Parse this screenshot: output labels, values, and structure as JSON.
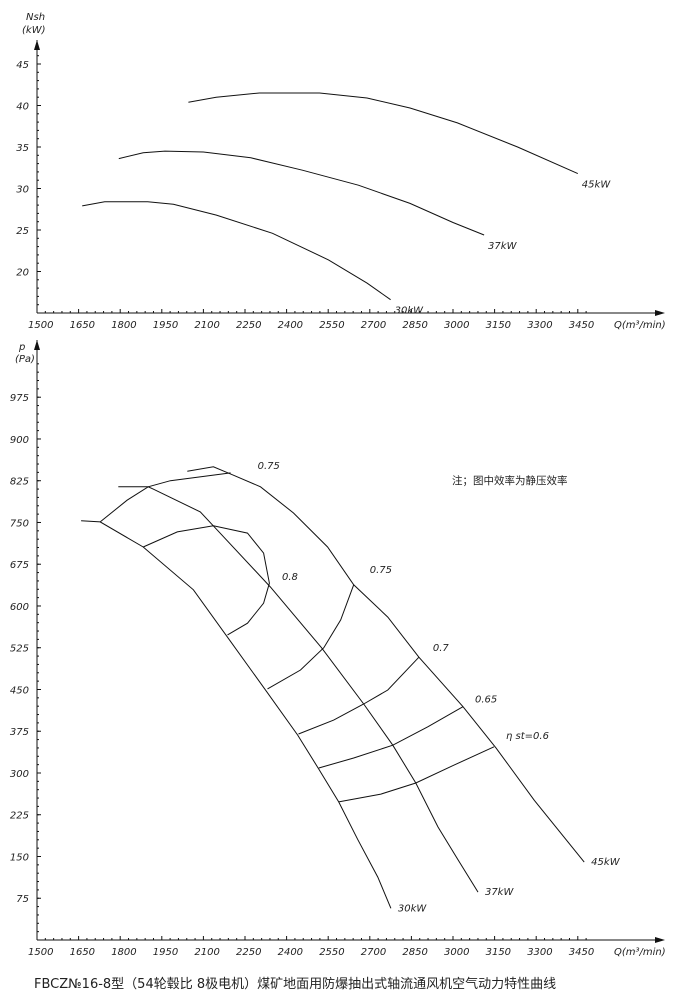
{
  "chart_data": [
    {
      "type": "line",
      "title": "",
      "ylabel_line1": "Nsh",
      "ylabel_line2": "(kW)",
      "xlabel": "Q(m³/min)",
      "xlim": [
        1500,
        3500
      ],
      "ylim": [
        15,
        47
      ],
      "xticks": [
        1500,
        1650,
        1800,
        1950,
        2100,
        2250,
        2400,
        2550,
        2700,
        2850,
        3000,
        3150,
        3300,
        3450
      ],
      "yticks": [
        20,
        25,
        30,
        35,
        40,
        45
      ],
      "grid": false,
      "series": [
        {
          "name": "45kW",
          "x": [
            2046,
            2146,
            2302,
            2519,
            2690,
            2845,
            3016,
            3233,
            3450
          ],
          "y": [
            40.4,
            41.0,
            41.5,
            41.5,
            40.9,
            39.7,
            37.9,
            35.0,
            31.8
          ]
        },
        {
          "name": "37kW",
          "x": [
            1795,
            1883,
            1961,
            2100,
            2271,
            2457,
            2659,
            2845,
            3000,
            3112
          ],
          "y": [
            33.6,
            34.3,
            34.5,
            34.4,
            33.7,
            32.2,
            30.4,
            28.2,
            25.9,
            24.4
          ]
        },
        {
          "name": "30kW",
          "x": [
            1663,
            1744,
            1899,
            1992,
            2147,
            2349,
            2551,
            2690,
            2775
          ],
          "y": [
            27.9,
            28.4,
            28.4,
            28.1,
            26.8,
            24.6,
            21.4,
            18.6,
            16.6
          ]
        }
      ]
    },
    {
      "type": "line",
      "title": "",
      "ylabel_line1": "p",
      "ylabel_line2": "(Pa)",
      "xlabel": "Q(m³/min)",
      "xlim": [
        1500,
        3500
      ],
      "ylim": [
        0,
        1050
      ],
      "xticks": [
        1500,
        1650,
        1800,
        1950,
        2100,
        2250,
        2400,
        2550,
        2700,
        2850,
        3000,
        3150,
        3300,
        3450
      ],
      "yticks": [
        75,
        150,
        225,
        300,
        375,
        450,
        525,
        600,
        675,
        750,
        825,
        900,
        975
      ],
      "grid": false,
      "note": "注；图中效率为静压效率",
      "series": [
        {
          "name": "30kW",
          "x": [
            1659,
            1728,
            1883,
            2064,
            2187,
            2331,
            2440,
            2516,
            2588,
            2657,
            2729,
            2776
          ],
          "y": [
            753,
            751,
            706,
            629,
            544,
            444,
            368,
            307,
            248,
            180,
            113,
            57
          ]
        },
        {
          "name": "37kW",
          "x": [
            1793,
            1901,
            1919,
            2089,
            2151,
            2342,
            2526,
            2678,
            2783,
            2866,
            2946,
            3018,
            3090
          ],
          "y": [
            814,
            814,
            810,
            769,
            736,
            634,
            525,
            424,
            350,
            282,
            203,
            144,
            86
          ]
        },
        {
          "name": "45kW",
          "x": [
            2042,
            2136,
            2208,
            2306,
            2425,
            2548,
            2642,
            2765,
            2877,
            3036,
            3155,
            3293,
            3473
          ],
          "y": [
            842,
            850,
            835,
            814,
            767,
            706,
            638,
            580,
            508,
            419,
            345,
            251,
            140
          ]
        }
      ],
      "efficiency_curves": [
        {
          "name": "0.75",
          "x": [
            1728,
            1825,
            1901,
            1981,
            2198
          ],
          "y": [
            751,
            790,
            814,
            825,
            839
          ]
        },
        {
          "name": "0.8",
          "x": [
            1883,
            2006,
            2136,
            2259,
            2317,
            2338,
            2317,
            2259,
            2187
          ],
          "y": [
            706,
            733,
            744,
            731,
            695,
            641,
            605,
            569,
            548
          ]
        },
        {
          "name": "0.75",
          "x": [
            2642,
            2595,
            2534,
            2450,
            2331
          ],
          "y": [
            638,
            575,
            525,
            485,
            451
          ]
        },
        {
          "name": "0.7",
          "x": [
            2877,
            2765,
            2678,
            2570,
            2443
          ],
          "y": [
            508,
            449,
            424,
            395,
            370
          ]
        },
        {
          "name": "0.65",
          "x": [
            3036,
            2909,
            2783,
            2642,
            2516
          ],
          "y": [
            419,
            383,
            350,
            327,
            309
          ]
        },
        {
          "name": "η st=0.6",
          "x": [
            3148,
            3003,
            2866,
            2740,
            2588
          ],
          "y": [
            347,
            314,
            282,
            262,
            248
          ]
        }
      ]
    }
  ],
  "caption": "FBCZ№16-8型（54轮毂比 8极电机）煤矿地面用防爆抽出式轴流通风机空气动力特性曲线"
}
